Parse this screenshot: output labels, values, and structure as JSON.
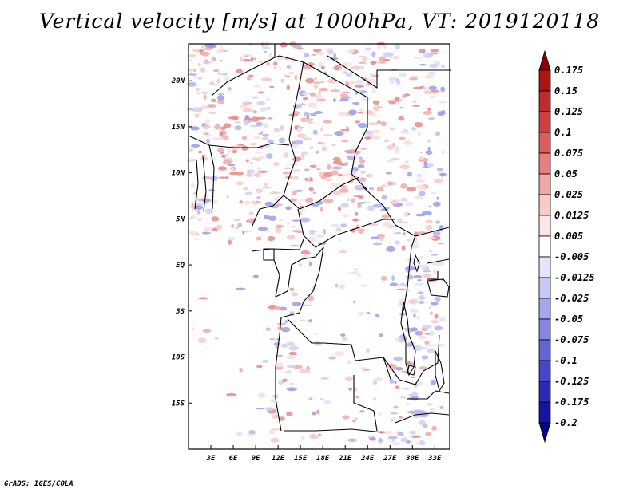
{
  "title": "Vertical velocity [m/s] at 1000hPa, VT: 2019120118",
  "footer": "GrADS: IGES/COLA",
  "map": {
    "lon_range": [
      0,
      35
    ],
    "lat_range": [
      -20,
      24
    ],
    "lat_ticks": [
      "20N",
      "15N",
      "10N",
      "5N",
      "EQ",
      "5S",
      "10S",
      "15S"
    ],
    "lat_tick_values": [
      20,
      15,
      10,
      5,
      0,
      -5,
      -10,
      -15
    ],
    "lon_ticks": [
      "3E",
      "6E",
      "9E",
      "12E",
      "15E",
      "18E",
      "21E",
      "24E",
      "27E",
      "30E",
      "33E"
    ],
    "lon_tick_values": [
      3,
      6,
      9,
      12,
      15,
      18,
      21,
      24,
      27,
      30,
      33
    ]
  },
  "colorbar": {
    "labels": [
      "0.175",
      "0.15",
      "0.125",
      "0.1",
      "0.075",
      "0.05",
      "0.025",
      "0.0125",
      "0.005",
      "-0.005",
      "-0.0125",
      "-0.025",
      "-0.05",
      "-0.075",
      "-0.1",
      "-0.125",
      "-0.175",
      "-0.2"
    ],
    "colors": [
      "#8b0000",
      "#ad1414",
      "#c02a2a",
      "#d04040",
      "#de5c5c",
      "#e87f7f",
      "#f2a6a6",
      "#f8caca",
      "#fce6e6",
      "#ffffff",
      "#e4e4fb",
      "#c8c8f6",
      "#a6a6ee",
      "#8585e3",
      "#6464d8",
      "#4646c9",
      "#2a2ab6",
      "#1414a0",
      "#060680"
    ]
  }
}
